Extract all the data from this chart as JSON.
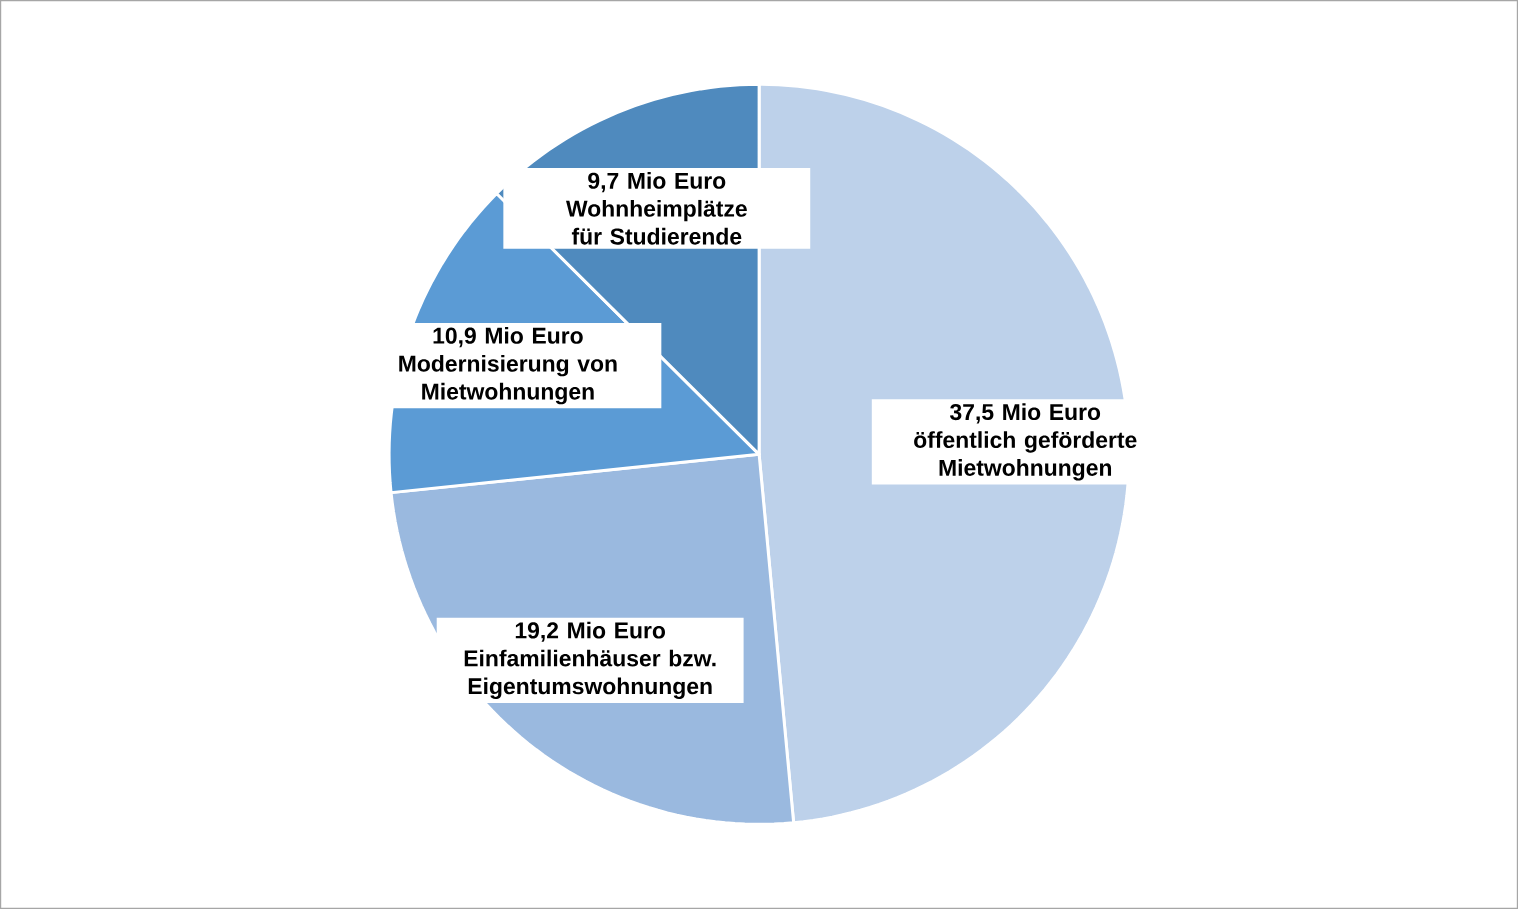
{
  "chart_data": {
    "type": "pie",
    "categories": [
      "öffentlich geförderte Mietwohnungen",
      "Einfamilienhäuser bzw. Eigentumswohnungen",
      "Modernisierung von Mietwohnungen",
      "Wohnheimplätze für Studierende"
    ],
    "values": [
      37.5,
      19.2,
      10.9,
      9.7
    ],
    "colors": [
      "#bdd1ea",
      "#9ab9df",
      "#5b9bd5",
      "#4f8abe"
    ],
    "value_labels": [
      "37,5 Mio Euro",
      "19,2 Mio Euro",
      "10,9 Mio Euro",
      "9,7 Mio Euro"
    ]
  }
}
